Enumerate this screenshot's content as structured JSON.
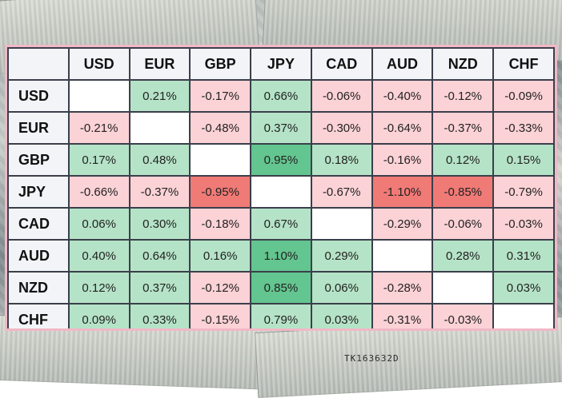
{
  "serial_number": "TK163632D",
  "currencies": [
    "USD",
    "EUR",
    "GBP",
    "JPY",
    "CAD",
    "AUD",
    "NZD",
    "CHF"
  ],
  "rows": [
    {
      "label": "USD",
      "cells": [
        "",
        "0.21%",
        "-0.17%",
        "0.66%",
        "-0.06%",
        "-0.40%",
        "-0.12%",
        "-0.09%"
      ]
    },
    {
      "label": "EUR",
      "cells": [
        "-0.21%",
        "",
        "-0.48%",
        "0.37%",
        "-0.30%",
        "-0.64%",
        "-0.37%",
        "-0.33%"
      ]
    },
    {
      "label": "GBP",
      "cells": [
        "0.17%",
        "0.48%",
        "",
        "0.95%",
        "0.18%",
        "-0.16%",
        "0.12%",
        "0.15%"
      ]
    },
    {
      "label": "JPY",
      "cells": [
        "-0.66%",
        "-0.37%",
        "-0.95%",
        "",
        "-0.67%",
        "-1.10%",
        "-0.85%",
        "-0.79%"
      ]
    },
    {
      "label": "CAD",
      "cells": [
        "0.06%",
        "0.30%",
        "-0.18%",
        "0.67%",
        "",
        "-0.29%",
        "-0.06%",
        "-0.03%"
      ]
    },
    {
      "label": "AUD",
      "cells": [
        "0.40%",
        "0.64%",
        "0.16%",
        "1.10%",
        "0.29%",
        "",
        "0.28%",
        "0.31%"
      ]
    },
    {
      "label": "NZD",
      "cells": [
        "0.12%",
        "0.37%",
        "-0.12%",
        "0.85%",
        "0.06%",
        "-0.28%",
        "",
        "0.03%"
      ]
    },
    {
      "label": "CHF",
      "cells": [
        "0.09%",
        "0.33%",
        "-0.15%",
        "0.79%",
        "0.03%",
        "-0.31%",
        "-0.03%",
        ""
      ]
    }
  ],
  "colors": {
    "positive": "#b5e3c7",
    "positive_strong": "#63c58f",
    "negative": "#fbd2d6",
    "negative_strong": "#f07a76",
    "frame_border": "#f1b8c6"
  }
}
